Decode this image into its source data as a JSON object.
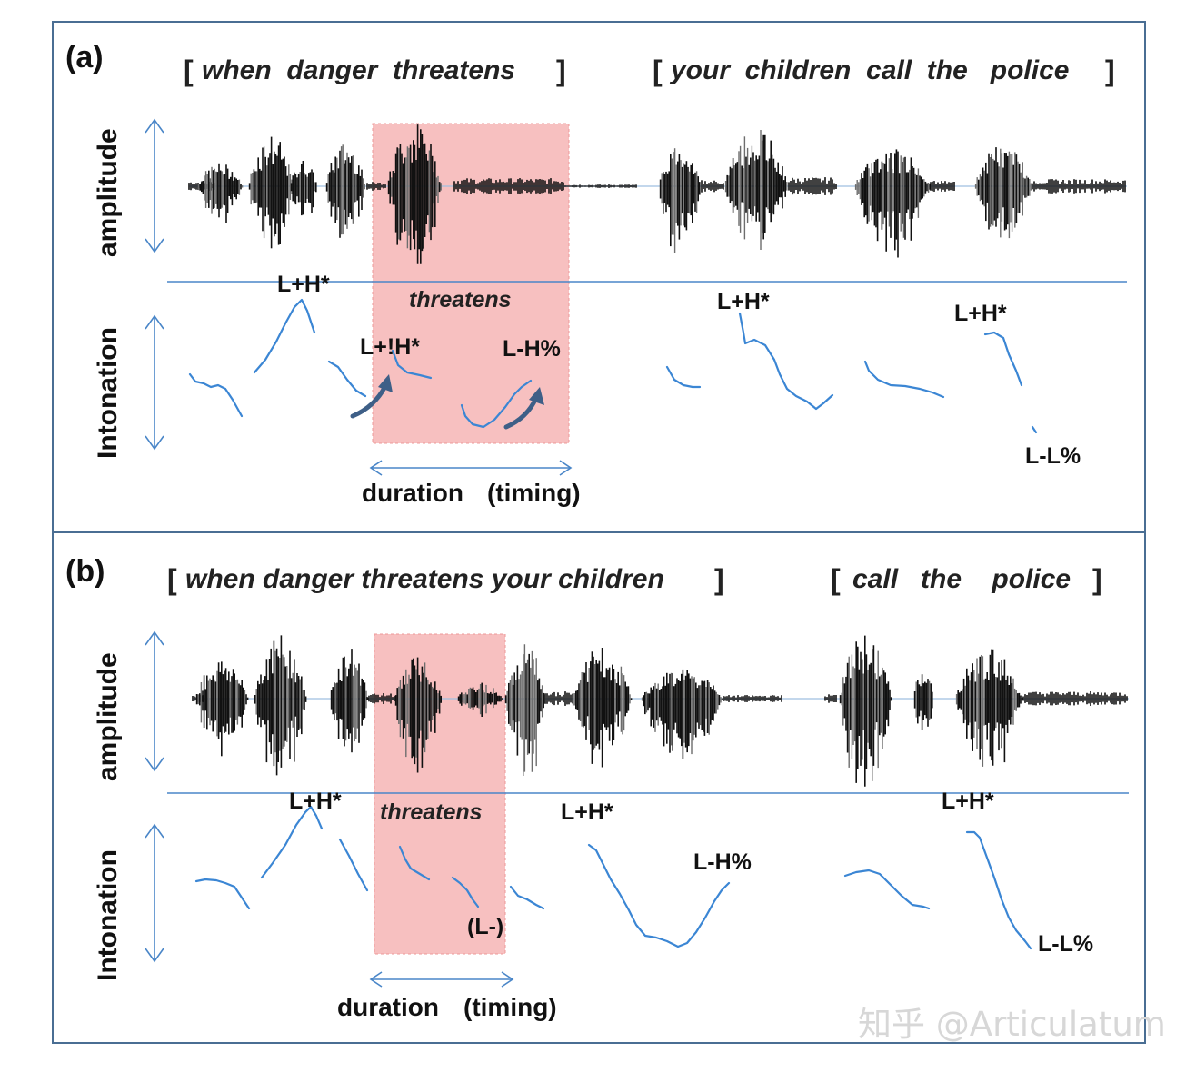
{
  "colors": {
    "frame": "#4a6e93",
    "highlight": "#f7c0c0",
    "pitch": "#3b86d4",
    "axis": "#4a86c8"
  },
  "panel_a": {
    "label": "(a)",
    "phrase1": {
      "open": "[",
      "words": "when  danger  threatens",
      "close": "]"
    },
    "phrase2": {
      "open": "[",
      "words": "your  children  call  the   police",
      "close": "]"
    },
    "amplitude_label": "amplitude",
    "intonation_label": "Intonation",
    "highlight_word": "threatens",
    "tones": [
      "L+H*",
      "L+!H*",
      "L-H%",
      "L+H*",
      "L+H*",
      "L-L%"
    ],
    "duration_label": "duration",
    "timing_label": "(timing)"
  },
  "panel_b": {
    "label": "(b)",
    "phrase1": {
      "open": "[",
      "words": "when danger threatens your children",
      "close": "]"
    },
    "phrase2": {
      "open": "[",
      "words": "call   the    police",
      "close": "]"
    },
    "amplitude_label": "amplitude",
    "intonation_label": "Intonation",
    "highlight_word": "threatens",
    "tones": [
      "L+H*",
      "L+H*",
      "L-H%",
      "(L-)",
      "L+H*",
      "L-L%"
    ],
    "duration_label": "duration",
    "timing_label": "(timing)"
  },
  "watermark": "知乎 @Articulatum"
}
